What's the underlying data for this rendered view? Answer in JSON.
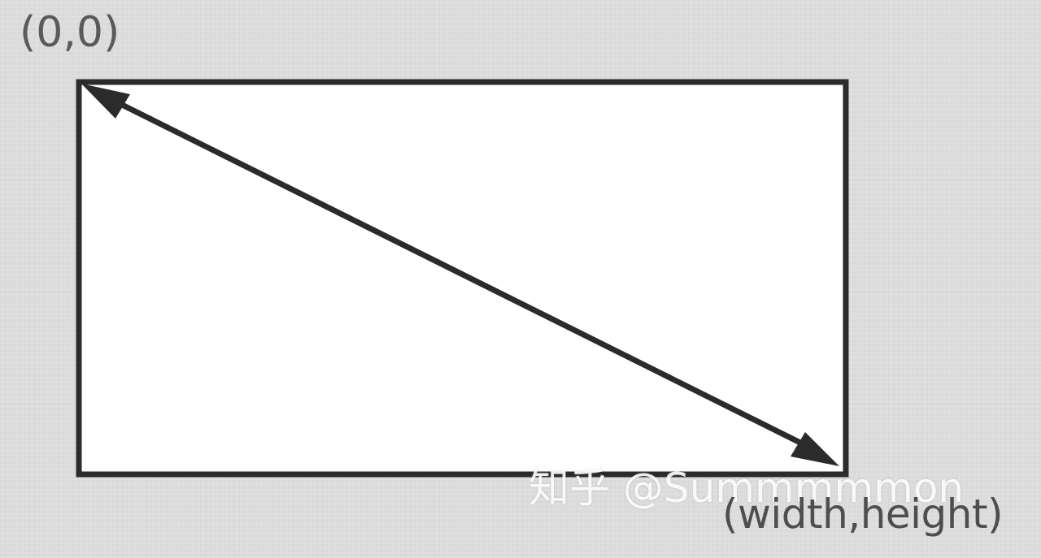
{
  "labels": {
    "origin": "(0,0)",
    "corner": "(width,height)"
  },
  "watermark": {
    "text": "知乎 @Summmmmon"
  },
  "colors": {
    "background": "#dcdcdc",
    "rectangle_fill": "#ffffff",
    "stroke": "#2b2b2b",
    "label_text": "#555555"
  }
}
